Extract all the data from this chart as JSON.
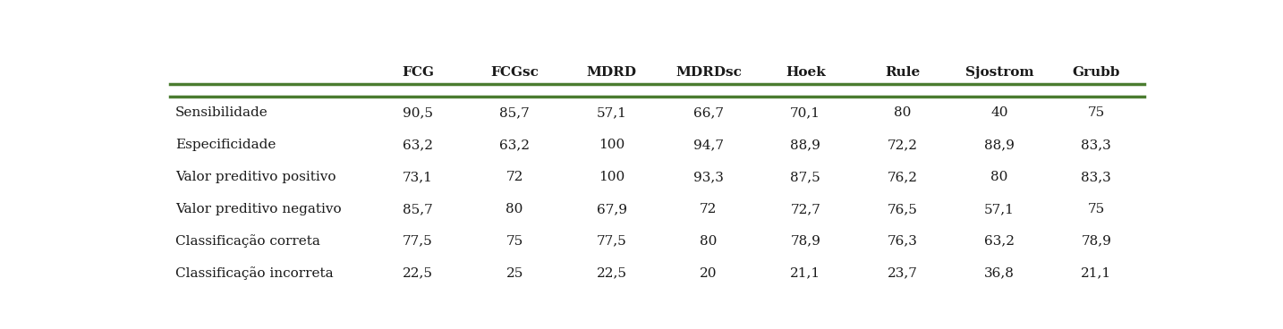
{
  "columns": [
    "FCG",
    "FCGsc",
    "MDRD",
    "MDRDsc",
    "Hoek",
    "Rule",
    "Sjostrom",
    "Grubb"
  ],
  "rows": [
    {
      "label": "Sensibilidade",
      "values": [
        "90,5",
        "85,7",
        "57,1",
        "66,7",
        "70,1",
        "80",
        "40",
        "75"
      ]
    },
    {
      "label": "Especificidade",
      "values": [
        "63,2",
        "63,2",
        "100",
        "94,7",
        "88,9",
        "72,2",
        "88,9",
        "83,3"
      ]
    },
    {
      "label": "Valor preditivo positivo",
      "values": [
        "73,1",
        "72",
        "100",
        "93,3",
        "87,5",
        "76,2",
        "80",
        "83,3"
      ]
    },
    {
      "label": "Valor preditivo negativo",
      "values": [
        "85,7",
        "80",
        "67,9",
        "72",
        "72,7",
        "76,5",
        "57,1",
        "75"
      ]
    },
    {
      "label": "Classificação correta",
      "values": [
        "77,5",
        "75",
        "77,5",
        "80",
        "78,9",
        "76,3",
        "63,2",
        "78,9"
      ]
    },
    {
      "label": "Classificação incorreta",
      "values": [
        "22,5",
        "25",
        "22,5",
        "20",
        "21,1",
        "23,7",
        "36,8",
        "21,1"
      ]
    }
  ],
  "header_line_color": "#4a7c2f",
  "text_color": "#1a1a1a",
  "background_color": "#ffffff",
  "font_size": 11,
  "header_font_size": 11
}
